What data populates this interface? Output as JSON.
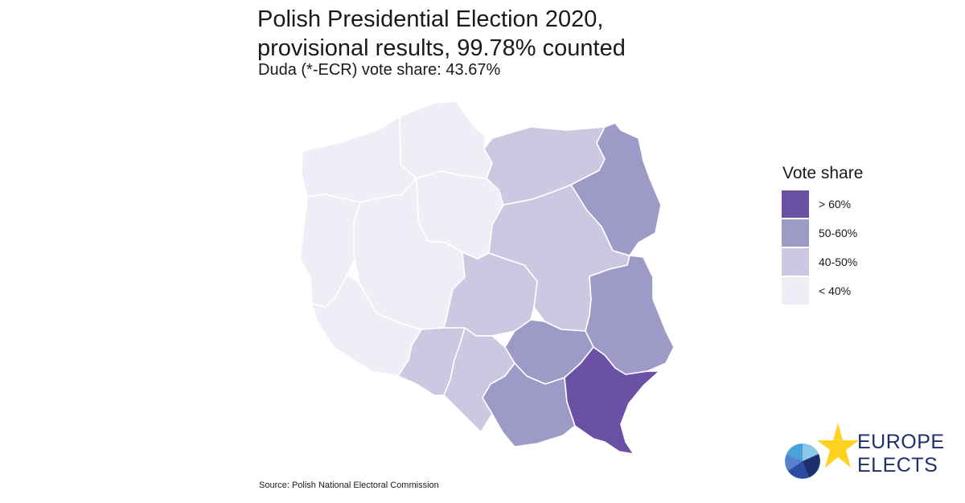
{
  "title_line1": "Polish Presidential Election 2020,",
  "title_line2": "provisional results, 99.78% counted",
  "subtitle": "Duda (*-ECR) vote share: 43.67%",
  "legend": {
    "title": "Vote share",
    "items": [
      {
        "label": "> 60%",
        "color": "#6a51a3"
      },
      {
        "label": "50-60%",
        "color": "#9e9ac8"
      },
      {
        "label": "40-50%",
        "color": "#cbc9e2"
      },
      {
        "label": "< 40%",
        "color": "#efedf5"
      }
    ]
  },
  "regions": [
    {
      "id": "pomorskie",
      "band": "< 40%",
      "color": "#efedf5"
    },
    {
      "id": "zachodniopomorskie",
      "band": "< 40%",
      "color": "#efedf5"
    },
    {
      "id": "kujawsko-pomorskie",
      "band": "< 40%",
      "color": "#efedf5"
    },
    {
      "id": "lubuskie",
      "band": "< 40%",
      "color": "#efedf5"
    },
    {
      "id": "wielkopolskie",
      "band": "< 40%",
      "color": "#efedf5"
    },
    {
      "id": "dolnoslaskie",
      "band": "< 40%",
      "color": "#efedf5"
    },
    {
      "id": "warminsko-mazurskie",
      "band": "40-50%",
      "color": "#cbc9e2"
    },
    {
      "id": "mazowieckie",
      "band": "40-50%",
      "color": "#cbc9e2"
    },
    {
      "id": "lodzkie",
      "band": "40-50%",
      "color": "#cbc9e2"
    },
    {
      "id": "opolskie",
      "band": "40-50%",
      "color": "#cbc9e2"
    },
    {
      "id": "slaskie",
      "band": "40-50%",
      "color": "#cbc9e2"
    },
    {
      "id": "podlaskie",
      "band": "50-60%",
      "color": "#9e9ac8"
    },
    {
      "id": "lubelskie",
      "band": "50-60%",
      "color": "#9e9ac8"
    },
    {
      "id": "swietokrzyskie",
      "band": "50-60%",
      "color": "#9e9ac8"
    },
    {
      "id": "malopolskie",
      "band": "50-60%",
      "color": "#9e9ac8"
    },
    {
      "id": "podkarpackie",
      "band": "> 60%",
      "color": "#6a51a3"
    }
  ],
  "source": "Source: Polish National Electoral Commission",
  "logo": {
    "line1": "EUROPE",
    "line2": "ELECTS",
    "text_color": "#1e2f6b",
    "star_color": "#ffd21f"
  }
}
